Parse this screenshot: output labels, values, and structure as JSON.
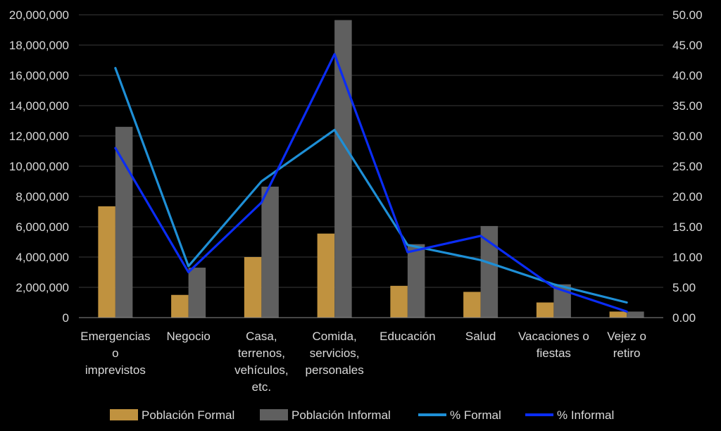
{
  "chart_data": {
    "type": "bar",
    "categories": [
      [
        "Emergencias",
        "o",
        "imprevistos"
      ],
      [
        "Negocio"
      ],
      [
        "Casa,",
        "terrenos,",
        "vehículos,",
        "etc."
      ],
      [
        "Comida,",
        "servicios,",
        "personales"
      ],
      [
        "Educación"
      ],
      [
        "Salud"
      ],
      [
        "Vacaciones o",
        "fiestas"
      ],
      [
        "Vejez o",
        "retiro"
      ]
    ],
    "series": [
      {
        "name": "Población Formal",
        "kind": "bar",
        "axis": "left",
        "color": "#c0923f",
        "values": [
          7350000,
          1500000,
          4000000,
          5550000,
          2100000,
          1700000,
          1000000,
          400000
        ]
      },
      {
        "name": "Población Informal",
        "kind": "bar",
        "axis": "left",
        "color": "#5f5f5f",
        "values": [
          12600000,
          3300000,
          8650000,
          19650000,
          4850000,
          6050000,
          2200000,
          400000
        ]
      },
      {
        "name": "% Formal",
        "kind": "line",
        "axis": "right",
        "color": "#1e8fd6",
        "values": [
          41.2,
          8.5,
          22.5,
          31.0,
          12.0,
          9.5,
          5.5,
          2.5
        ]
      },
      {
        "name": "% Informal",
        "kind": "line",
        "axis": "right",
        "color": "#0a2cf5",
        "values": [
          28.0,
          7.5,
          19.0,
          43.5,
          10.8,
          13.5,
          5.0,
          1.0
        ]
      }
    ],
    "y_left": {
      "min": 0,
      "max": 20000000,
      "step": 2000000,
      "tick_labels": [
        "0",
        "2,000,000",
        "4,000,000",
        "6,000,000",
        "8,000,000",
        "10,000,000",
        "12,000,000",
        "14,000,000",
        "16,000,000",
        "18,000,000",
        "20,000,000"
      ]
    },
    "y_right": {
      "min": 0,
      "max": 50,
      "step": 5,
      "tick_labels": [
        "0.00",
        "5.00",
        "10.00",
        "15.00",
        "20.00",
        "25.00",
        "30.00",
        "35.00",
        "40.00",
        "45.00",
        "50.00"
      ]
    },
    "grid": true,
    "legend_position": "bottom",
    "title": "",
    "xlabel": "",
    "ylabel": ""
  }
}
